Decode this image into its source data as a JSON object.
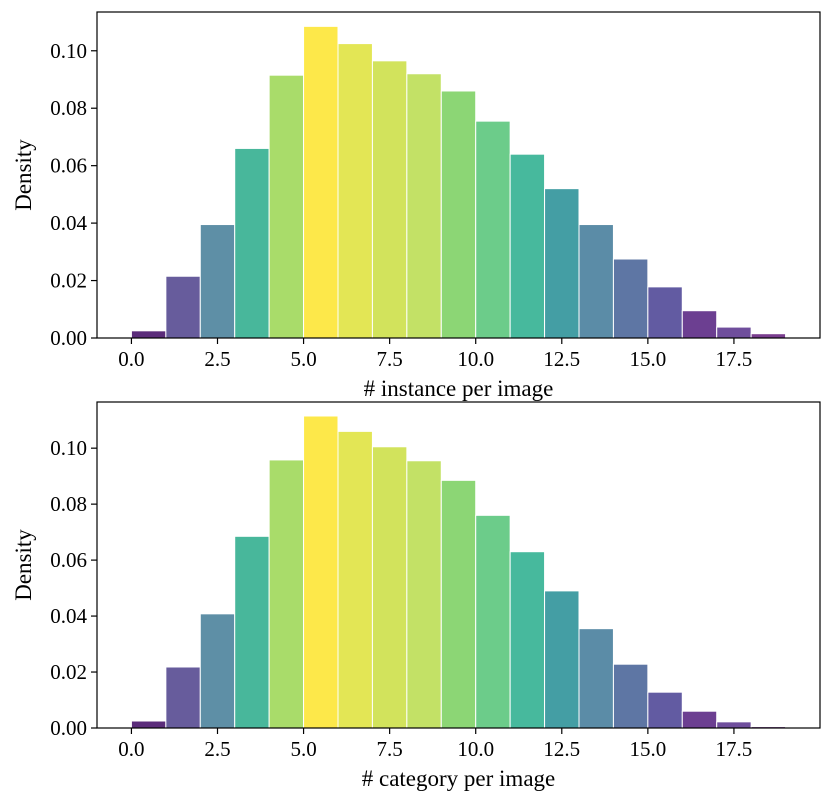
{
  "chart_data": [
    {
      "type": "bar",
      "title": "",
      "xlabel": "# instance per image",
      "ylabel": "Density",
      "xlim": [
        -1,
        20
      ],
      "ylim": [
        0,
        0.1135
      ],
      "xticks": [
        0.0,
        2.5,
        5.0,
        7.5,
        10.0,
        12.5,
        15.0,
        17.5
      ],
      "xtick_labels": [
        "0.0",
        "2.5",
        "5.0",
        "7.5",
        "10.0",
        "12.5",
        "15.0",
        "17.5"
      ],
      "yticks": [
        0.0,
        0.02,
        0.04,
        0.06,
        0.08,
        0.1
      ],
      "ytick_labels": [
        "0.00",
        "0.02",
        "0.04",
        "0.06",
        "0.08",
        "0.10"
      ],
      "bin_edges": [
        0,
        1,
        2,
        3,
        4,
        5,
        6,
        7,
        8,
        9,
        10,
        11,
        12,
        13,
        14,
        15,
        16,
        17,
        18,
        19
      ],
      "values": [
        0.0025,
        0.0215,
        0.0395,
        0.066,
        0.0915,
        0.1085,
        0.1025,
        0.0965,
        0.092,
        0.086,
        0.0755,
        0.064,
        0.052,
        0.0395,
        0.0275,
        0.0178,
        0.0095,
        0.0038,
        0.0015
      ],
      "colors": [
        "#5b2c7a",
        "#675c9c",
        "#5e8fa6",
        "#48b79b",
        "#a9dc6a",
        "#fde84a",
        "#e3e655",
        "#d2e35c",
        "#c3e166",
        "#8cd675",
        "#6ccc8a",
        "#47b99d",
        "#449ea4",
        "#5b8ca7",
        "#5e76a4",
        "#625ba2",
        "#6c3f91",
        "#6f4e9c",
        "#7a3e8f"
      ]
    },
    {
      "type": "bar",
      "title": "",
      "xlabel": "# category per image",
      "ylabel": "Density",
      "xlim": [
        -1,
        20
      ],
      "ylim": [
        0,
        0.1165
      ],
      "xticks": [
        0.0,
        2.5,
        5.0,
        7.5,
        10.0,
        12.5,
        15.0,
        17.5
      ],
      "xtick_labels": [
        "0.0",
        "2.5",
        "5.0",
        "7.5",
        "10.0",
        "12.5",
        "15.0",
        "17.5"
      ],
      "yticks": [
        0.0,
        0.02,
        0.04,
        0.06,
        0.08,
        0.1
      ],
      "ytick_labels": [
        "0.00",
        "0.02",
        "0.04",
        "0.06",
        "0.08",
        "0.10"
      ],
      "bin_edges": [
        0,
        1,
        2,
        3,
        4,
        5,
        6,
        7,
        8,
        9,
        10,
        11,
        12,
        13,
        14,
        15,
        16,
        17,
        18,
        19
      ],
      "values": [
        0.0025,
        0.0218,
        0.0408,
        0.0685,
        0.0958,
        0.1115,
        0.106,
        0.1005,
        0.0955,
        0.0885,
        0.076,
        0.063,
        0.049,
        0.0355,
        0.0228,
        0.0128,
        0.006,
        0.0022,
        0.0005
      ],
      "colors": [
        "#5b2c7a",
        "#675c9c",
        "#5e8fa6",
        "#48b79b",
        "#a9dc6a",
        "#fde84a",
        "#e3e655",
        "#d2e35c",
        "#c3e166",
        "#8cd675",
        "#6ccc8a",
        "#47b99d",
        "#449ea4",
        "#5b8ca7",
        "#5e76a4",
        "#625ba2",
        "#6c3f91",
        "#6f4e9c",
        "#7a3e8f"
      ]
    }
  ]
}
